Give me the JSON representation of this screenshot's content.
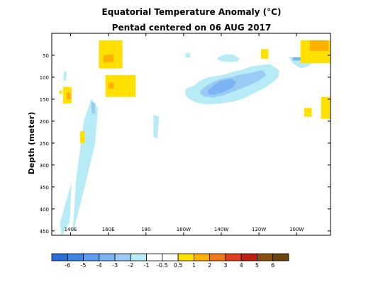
{
  "colors": {
    "neg6": "#2a6fd8",
    "neg5": "#3c86e6",
    "neg4": "#5c9ff0",
    "neg3": "#7cb3f3",
    "neg2": "#99cbf5",
    "neg1": "#b7ecf6",
    "neg05": "#ffffff",
    "pos05": "#ffffff",
    "pos1": "#ffe000",
    "pos2": "#ffb000",
    "pos3": "#f07a1a",
    "pos4": "#e04020",
    "pos5": "#c02010",
    "pos6": "#8a5010",
    "pos7": "#6a4510"
  },
  "chart_data": {
    "type": "heatmap",
    "title": "Equatorial Temperature Anomaly (°C)",
    "subtitle": "Pentad centered on 06 AUG 2017",
    "xlabel": "",
    "ylabel": "Depth (meter)",
    "x_ticks": [
      "140E",
      "160E",
      "180",
      "160W",
      "140W",
      "120W",
      "100W"
    ],
    "x_tick_lon": [
      140,
      160,
      180,
      200,
      220,
      240,
      260
    ],
    "xlim": [
      130,
      278
    ],
    "y_ticks": [
      50,
      100,
      150,
      200,
      250,
      300,
      350,
      400,
      450
    ],
    "ylim": [
      460,
      0
    ],
    "colorbar": {
      "labels": [
        "-6",
        "-5",
        "-4",
        "-3",
        "-2",
        "-1",
        "-0.5",
        "0.5",
        "1",
        "2",
        "3",
        "4",
        "5",
        "6"
      ],
      "bins": [
        "neg6",
        "neg5",
        "neg4",
        "neg3",
        "neg2",
        "neg1",
        "neg05",
        "pos05",
        "pos1",
        "pos2",
        "pos3",
        "pos4",
        "pos5",
        "pos6",
        "pos7"
      ]
    },
    "regions": [
      {
        "level": "neg1",
        "lon": [
          134.5,
          140.5,
          139.5,
          135.5,
          135.0
        ],
        "depth": [
          430,
          340,
          430,
          460,
          460
        ]
      },
      {
        "level": "neg1",
        "lon": [
          141,
          148,
          153,
          154.5,
          151,
          147,
          143,
          141
        ],
        "depth": [
          460,
          340,
          250,
          170,
          150,
          200,
          330,
          460
        ]
      },
      {
        "level": "neg1",
        "lon": [
          150.5,
          153,
          152.5,
          150.5
        ],
        "depth": [
          150,
          165,
          205,
          200
        ]
      },
      {
        "level": "neg2",
        "lon": [
          151,
          153,
          153,
          151
        ],
        "depth": [
          155,
          160,
          185,
          180
        ]
      },
      {
        "level": "neg1",
        "lon": [
          136.5,
          138,
          137.5,
          136
        ],
        "depth": [
          85,
          90,
          110,
          105
        ]
      },
      {
        "level": "neg1",
        "lon": [
          149,
          150.5,
          150,
          148.5
        ],
        "depth": [
          228,
          230,
          240,
          238
        ]
      },
      {
        "level": "neg1",
        "lon": [
          184,
          187,
          186,
          184
        ],
        "depth": [
          185,
          190,
          240,
          235
        ]
      },
      {
        "level": "neg1",
        "lon": [
          201,
          206,
          208,
          210,
          213,
          216,
          221,
          226,
          232,
          236,
          242,
          246,
          251,
          250,
          244,
          238,
          232,
          226,
          219,
          212,
          207,
          203,
          201
        ],
        "depth": [
          127,
          118,
          110,
          105,
          100,
          98,
          95,
          88,
          82,
          75,
          72,
          70,
          85,
          102,
          122,
          135,
          148,
          156,
          160,
          162,
          158,
          150,
          140
        ]
      },
      {
        "level": "neg2",
        "lon": [
          209,
          212,
          216,
          220,
          225,
          230,
          236,
          242,
          244,
          240,
          234,
          228,
          222,
          216,
          211,
          209
        ],
        "depth": [
          130,
          120,
          110,
          104,
          100,
          94,
          90,
          84,
          95,
          108,
          120,
          130,
          140,
          146,
          144,
          138
        ]
      },
      {
        "level": "neg3",
        "lon": [
          213,
          216,
          220,
          225,
          228,
          226,
          221,
          216,
          213
        ],
        "depth": [
          130,
          118,
          108,
          104,
          110,
          124,
          134,
          140,
          138
        ]
      },
      {
        "level": "neg1",
        "lon": [
          218,
          222,
          226,
          230,
          228,
          222,
          218
        ],
        "depth": [
          55,
          48,
          48,
          58,
          65,
          65,
          60
        ]
      },
      {
        "level": "neg1",
        "lon": [
          256,
          263,
          269,
          266,
          262,
          258
        ],
        "depth": [
          55,
          52,
          65,
          75,
          80,
          68
        ]
      },
      {
        "level": "neg3",
        "lon": [
          258,
          262,
          262,
          258
        ],
        "depth": [
          55,
          55,
          62,
          62
        ]
      },
      {
        "level": "neg1",
        "lon": [
          201,
          203.5,
          203.5,
          201
        ],
        "depth": [
          45,
          45,
          55,
          55
        ]
      },
      {
        "level": "pos1",
        "lon": [
          155,
          167.5,
          167.5,
          155
        ],
        "depth": [
          16,
          16,
          80,
          80
        ]
      },
      {
        "level": "pos2",
        "lon": [
          157.5,
          162.5,
          163,
          157.5
        ],
        "depth": [
          50,
          48,
          65,
          67
        ]
      },
      {
        "level": "pos1",
        "lon": [
          158.5,
          174.5,
          174.5,
          158.5
        ],
        "depth": [
          95,
          95,
          145,
          145
        ]
      },
      {
        "level": "pos2",
        "lon": [
          160,
          163,
          163,
          160
        ],
        "depth": [
          112,
          112,
          126,
          126
        ]
      },
      {
        "level": "pos1",
        "lon": [
          136,
          140.5,
          140.5,
          136
        ],
        "depth": [
          122,
          122,
          160,
          160
        ]
      },
      {
        "level": "pos2",
        "lon": [
          138,
          140,
          140,
          138
        ],
        "depth": [
          135,
          135,
          150,
          150
        ]
      },
      {
        "level": "pos1",
        "lon": [
          134,
          135.5,
          135.5,
          134
        ],
        "depth": [
          130,
          130,
          138,
          138
        ]
      },
      {
        "level": "pos1",
        "lon": [
          145,
          147.5,
          147.5,
          145
        ],
        "depth": [
          223,
          223,
          250,
          250
        ]
      },
      {
        "level": "pos1",
        "lon": [
          262,
          278,
          278,
          262
        ],
        "depth": [
          16,
          16,
          68,
          68
        ]
      },
      {
        "level": "pos2",
        "lon": [
          267,
          277,
          277,
          267
        ],
        "depth": [
          16,
          16,
          40,
          40
        ]
      },
      {
        "level": "pos1",
        "lon": [
          241,
          245,
          245,
          241
        ],
        "depth": [
          36,
          36,
          58,
          58
        ]
      },
      {
        "level": "pos1",
        "lon": [
          264,
          268,
          268,
          264
        ],
        "depth": [
          170,
          170,
          190,
          190
        ]
      },
      {
        "level": "pos1",
        "lon": [
          273,
          278,
          278,
          273
        ],
        "depth": [
          145,
          145,
          195,
          195
        ]
      }
    ]
  }
}
